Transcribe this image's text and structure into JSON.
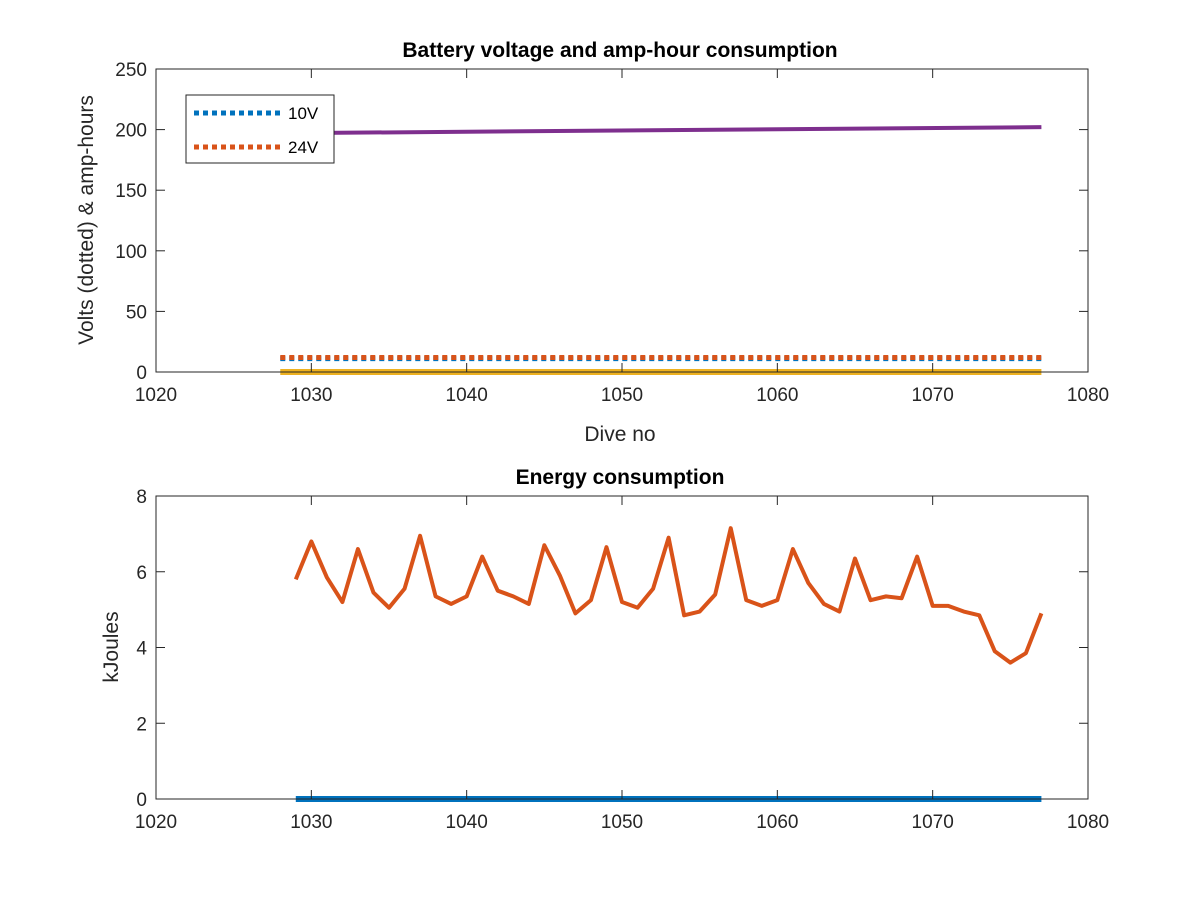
{
  "chart_data": [
    {
      "type": "line",
      "title": "Battery voltage and amp-hour consumption",
      "xlabel": "Dive no",
      "ylabel": "Volts (dotted) & amp-hours",
      "xlim": [
        1020,
        1080
      ],
      "ylim": [
        0,
        250
      ],
      "xticks": [
        "1020",
        "1030",
        "1040",
        "1050",
        "1060",
        "1070",
        "1080"
      ],
      "yticks": [
        "0",
        "50",
        "100",
        "150",
        "200",
        "250"
      ],
      "grid": false,
      "legend_position": "top-left",
      "legend": [
        "10V",
        "24V"
      ],
      "series": [
        {
          "name": "10V",
          "style": "dotted",
          "color": "#0072BD",
          "x": [
            1028,
            1077
          ],
          "y": [
            11,
            11
          ]
        },
        {
          "name": "24V",
          "style": "dotted",
          "color": "#D95319",
          "x": [
            1028,
            1077
          ],
          "y": [
            12,
            12
          ]
        },
        {
          "style": "solid",
          "color": "#EDB120",
          "x": [
            1028,
            1077
          ],
          "y": [
            0,
            0
          ]
        },
        {
          "style": "solid",
          "color": "#7E2F8E",
          "x": [
            1028,
            1077
          ],
          "y": [
            197,
            202
          ]
        }
      ]
    },
    {
      "type": "line",
      "title": "Energy consumption",
      "xlabel": "",
      "ylabel": "kJoules",
      "xlim": [
        1020,
        1080
      ],
      "ylim": [
        0,
        8
      ],
      "xticks": [
        "1020",
        "1030",
        "1040",
        "1050",
        "1060",
        "1070",
        "1080"
      ],
      "yticks": [
        "0",
        "2",
        "4",
        "6",
        "8"
      ],
      "grid": false,
      "series": [
        {
          "style": "solid",
          "color": "#0072BD",
          "x": [
            1029,
            1077
          ],
          "y": [
            0,
            0
          ]
        },
        {
          "style": "solid",
          "color": "#D95319",
          "x": [
            1029,
            1030,
            1031,
            1032,
            1033,
            1034,
            1035,
            1036,
            1037,
            1038,
            1039,
            1040,
            1041,
            1042,
            1043,
            1044,
            1045,
            1046,
            1047,
            1048,
            1049,
            1050,
            1051,
            1052,
            1053,
            1054,
            1055,
            1056,
            1057,
            1058,
            1059,
            1060,
            1061,
            1062,
            1063,
            1064,
            1065,
            1066,
            1067,
            1068,
            1069,
            1070,
            1071,
            1072,
            1073,
            1074,
            1075,
            1076,
            1077
          ],
          "y": [
            5.8,
            6.8,
            5.85,
            5.2,
            6.6,
            5.45,
            5.05,
            5.55,
            6.95,
            5.35,
            5.15,
            5.35,
            6.4,
            5.5,
            5.35,
            5.15,
            6.7,
            5.9,
            4.9,
            5.25,
            6.65,
            5.2,
            5.05,
            5.55,
            6.9,
            4.85,
            4.95,
            5.4,
            7.15,
            5.25,
            5.1,
            5.25,
            6.6,
            5.7,
            5.15,
            4.95,
            6.35,
            5.25,
            5.35,
            5.3,
            6.4,
            5.1,
            5.1,
            4.95,
            4.85,
            3.9,
            3.6,
            3.85,
            4.9
          ]
        }
      ]
    }
  ]
}
